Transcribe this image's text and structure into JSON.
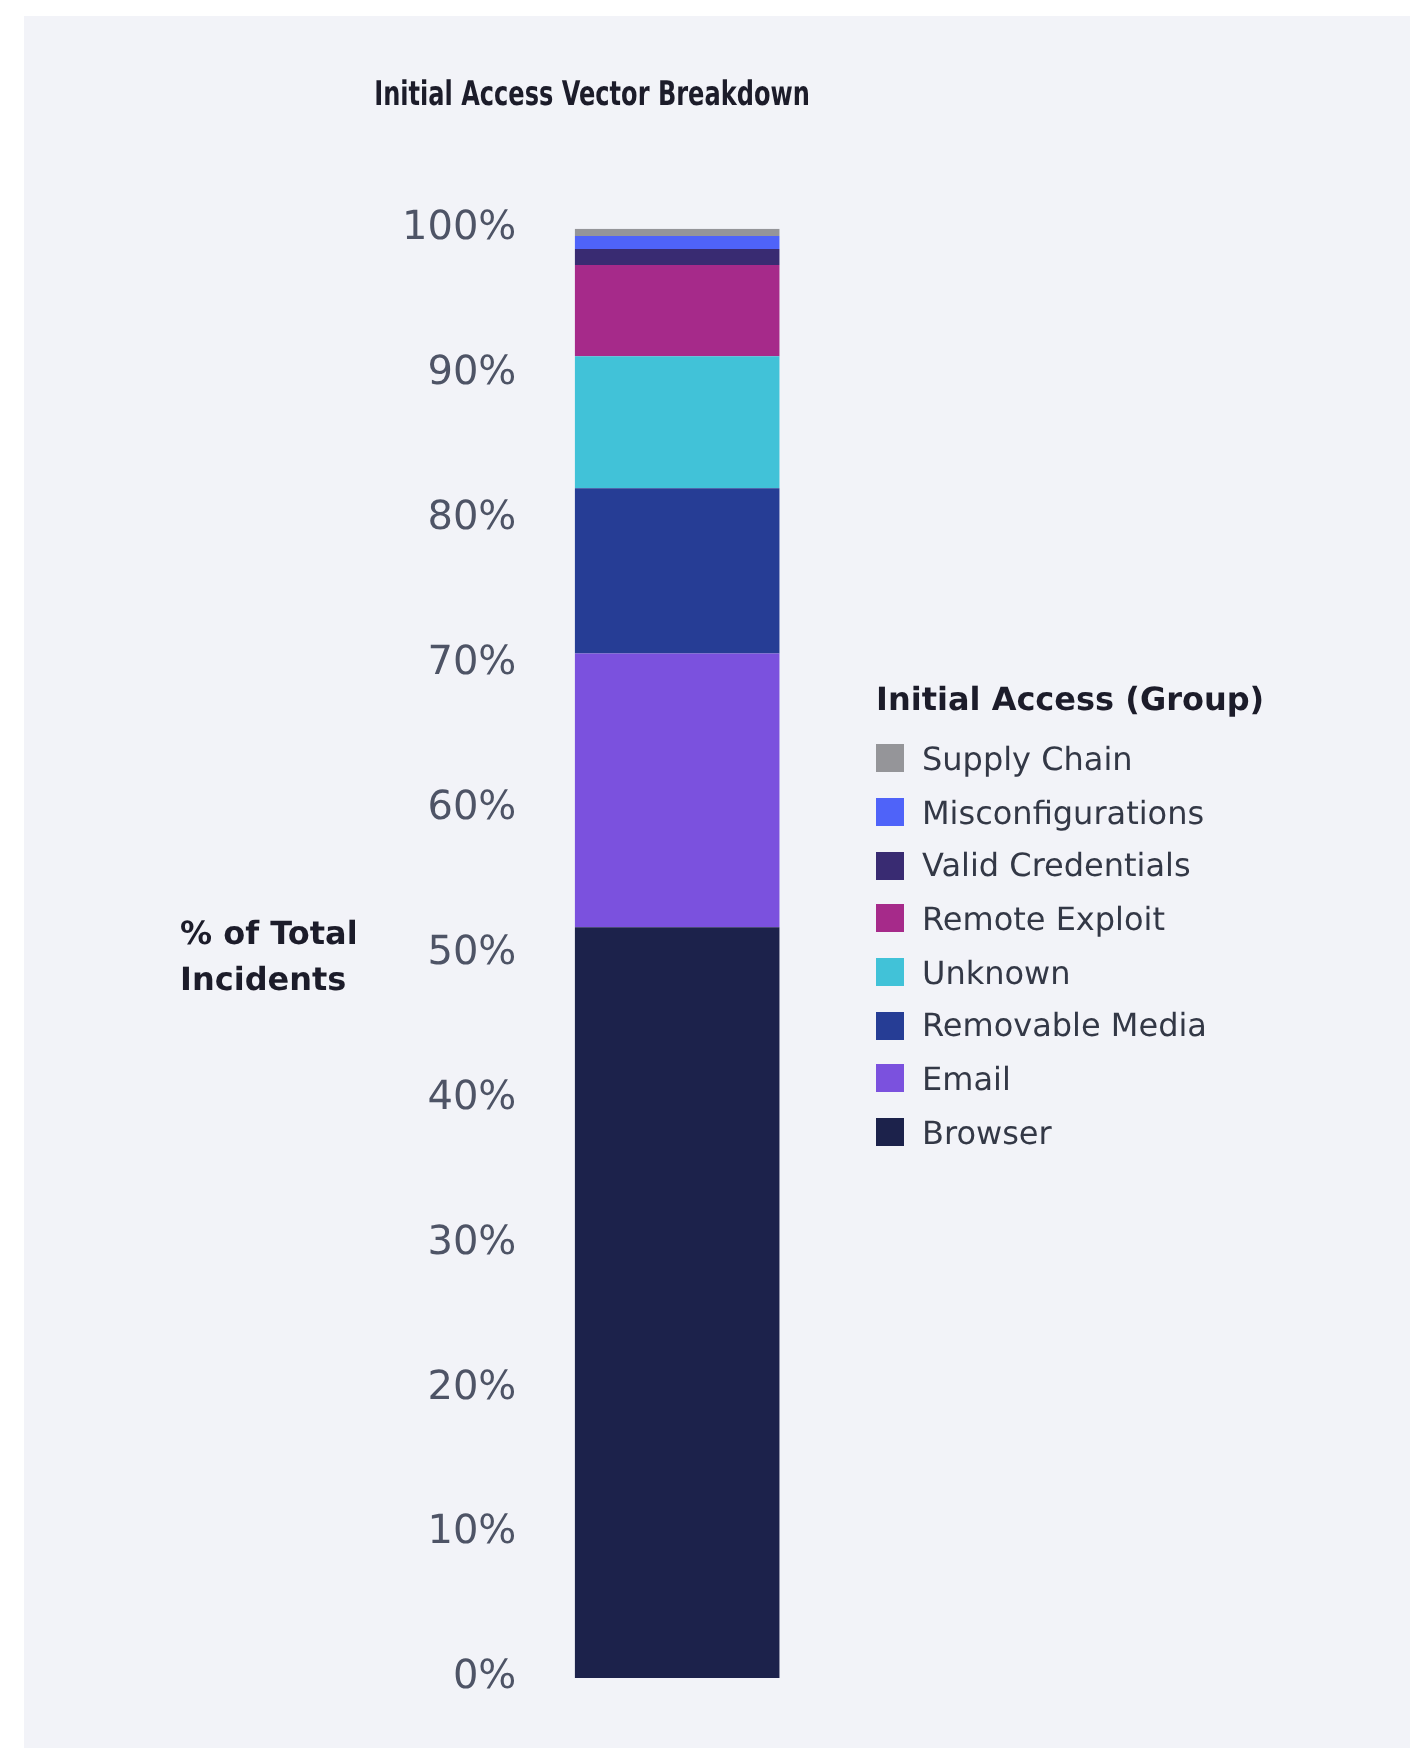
{
  "chart_data": {
    "type": "bar",
    "title": "Initial Access Vector Breakdown",
    "ylabel": "% of Total Incidents",
    "legend_title": "Initial Access (Group)",
    "categories": [
      null
    ],
    "stacked": true,
    "series": [
      {
        "name": "Browser",
        "color": "#1c224b",
        "values": [
          51.8
        ]
      },
      {
        "name": "Email",
        "color": "#7b51de",
        "values": [
          18.9
        ]
      },
      {
        "name": "Removable Media",
        "color": "#263d95",
        "values": [
          11.4
        ]
      },
      {
        "name": "Unknown",
        "color": "#41c2d8",
        "values": [
          9.1
        ]
      },
      {
        "name": "Remote Exploit",
        "color": "#a62a8a",
        "values": [
          6.3
        ]
      },
      {
        "name": "Valid Credentials",
        "color": "#392b72",
        "values": [
          1.1
        ]
      },
      {
        "name": "Misconfigurations",
        "color": "#4f63f9",
        "values": [
          0.9
        ]
      },
      {
        "name": "Supply Chain",
        "color": "#959599",
        "values": [
          0.5
        ]
      }
    ],
    "ylim": [
      0,
      100
    ],
    "yticks": [
      {
        "value": 0,
        "label": "0%"
      },
      {
        "value": 10,
        "label": "10%"
      },
      {
        "value": 20,
        "label": "20%"
      },
      {
        "value": 30,
        "label": "30%"
      },
      {
        "value": 40,
        "label": "40%"
      },
      {
        "value": 50,
        "label": "50%"
      },
      {
        "value": 60,
        "label": "60%"
      },
      {
        "value": 70,
        "label": "70%"
      },
      {
        "value": 80,
        "label": "80%"
      },
      {
        "value": 90,
        "label": "90%"
      },
      {
        "value": 100,
        "label": "100%"
      }
    ],
    "grid": false,
    "legend": "right"
  }
}
